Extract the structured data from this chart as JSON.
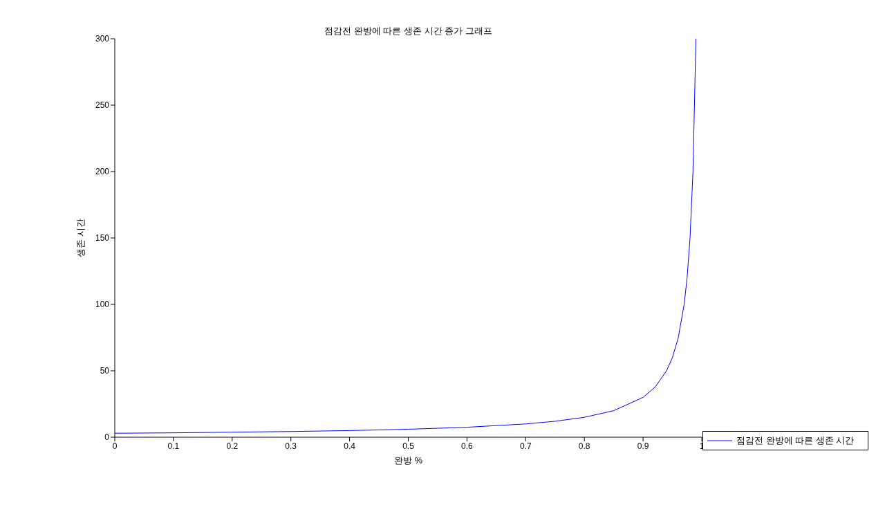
{
  "chart_data": {
    "type": "line",
    "title": "점감전 완방에 따른 생존 시간 증가 그래프",
    "xlabel": "완방 %",
    "ylabel": "생존 시간",
    "x": [
      0,
      0.1,
      0.2,
      0.3,
      0.4,
      0.5,
      0.6,
      0.7,
      0.75,
      0.8,
      0.85,
      0.9,
      0.92,
      0.94,
      0.95,
      0.96,
      0.97,
      0.975,
      0.98,
      0.985,
      0.99
    ],
    "series": [
      {
        "name": "점감전 완방에 따른 생존 시간",
        "color": "#0000ff",
        "values": [
          3,
          3.3,
          3.8,
          4.3,
          5,
          6,
          7.5,
          10,
          12,
          15,
          20,
          30,
          37.5,
          50,
          60,
          75,
          100,
          120,
          150,
          200,
          300
        ]
      }
    ],
    "xlim": [
      0,
      1
    ],
    "xticks": [
      0,
      0.1,
      0.2,
      0.3,
      0.4,
      0.5,
      0.6,
      0.7,
      0.8,
      0.9,
      1
    ],
    "ylim": [
      0,
      300
    ],
    "yticks": [
      0,
      50,
      100,
      150,
      200,
      250,
      300
    ],
    "grid": false,
    "legend": "right",
    "marker": "none",
    "line_style": "solid"
  }
}
